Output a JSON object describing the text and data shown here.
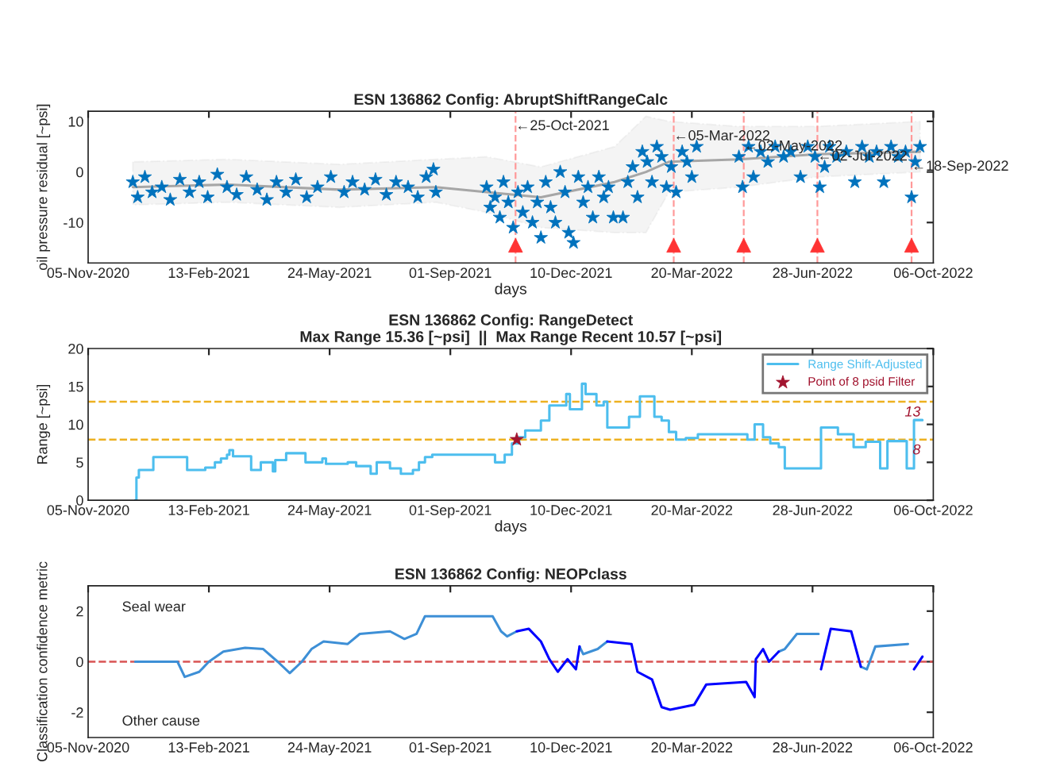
{
  "chart_data": [
    {
      "type": "scatter",
      "title": "ESN 136862 Config: AbruptShiftRangeCalc",
      "xlabel": "days",
      "ylabel": "oil pressure residual [~psi]",
      "xlim": [
        "2020-11-05",
        "2022-10-06"
      ],
      "ylim": [
        -18,
        12
      ],
      "yticks": [
        -10,
        0,
        10
      ],
      "xticks": [
        {
          "value": "2020-11-05",
          "label": "05-Nov-2020"
        },
        {
          "value": "2021-02-13",
          "label": "13-Feb-2021"
        },
        {
          "value": "2021-05-24",
          "label": "24-May-2021"
        },
        {
          "value": "2021-09-01",
          "label": "01-Sep-2021"
        },
        {
          "value": "2021-12-10",
          "label": "10-Dec-2021"
        },
        {
          "value": "2022-03-20",
          "label": "20-Mar-2022"
        },
        {
          "value": "2022-06-28",
          "label": "28-Jun-2022"
        },
        {
          "value": "2022-10-06",
          "label": "06-Oct-2022"
        }
      ],
      "grid": false,
      "legend": false,
      "series": [
        {
          "color": "#0072bd",
          "marker": "star",
          "x": [
            "2020-12-12",
            "2020-12-16",
            "2020-12-22",
            "2020-12-28",
            "2021-01-05",
            "2021-01-12",
            "2021-01-20",
            "2021-01-28",
            "2021-02-05",
            "2021-02-12",
            "2021-02-20",
            "2021-02-28",
            "2021-03-08",
            "2021-03-16",
            "2021-03-25",
            "2021-04-02",
            "2021-04-10",
            "2021-04-18",
            "2021-04-26",
            "2021-05-05",
            "2021-05-14",
            "2021-05-25",
            "2021-06-05",
            "2021-06-12",
            "2021-06-22",
            "2021-07-01",
            "2021-07-10",
            "2021-07-18",
            "2021-07-28",
            "2021-08-05",
            "2021-08-12",
            "2021-08-18",
            "2021-08-20",
            "2021-10-01",
            "2021-10-04",
            "2021-10-08",
            "2021-10-12",
            "2021-10-15",
            "2021-10-19",
            "2021-10-23",
            "2021-10-27",
            "2021-10-31",
            "2021-11-04",
            "2021-11-08",
            "2021-11-12",
            "2021-11-15",
            "2021-11-19",
            "2021-11-23",
            "2021-11-27",
            "2021-12-01",
            "2021-12-05",
            "2021-12-08",
            "2021-12-12",
            "2021-12-16",
            "2021-12-20",
            "2021-12-24",
            "2021-12-28",
            "2022-01-02",
            "2022-01-06",
            "2022-01-10",
            "2022-01-14",
            "2022-01-22",
            "2022-01-26",
            "2022-01-30",
            "2022-02-03",
            "2022-02-07",
            "2022-02-11",
            "2022-02-15",
            "2022-02-19",
            "2022-02-23",
            "2022-02-27",
            "2022-03-03",
            "2022-03-07",
            "2022-03-12",
            "2022-03-16",
            "2022-03-20",
            "2022-03-24",
            "2022-04-28",
            "2022-05-01",
            "2022-05-06",
            "2022-05-10",
            "2022-05-16",
            "2022-05-22",
            "2022-05-28",
            "2022-06-04",
            "2022-06-10",
            "2022-06-18",
            "2022-06-24",
            "2022-06-30",
            "2022-07-04",
            "2022-07-08",
            "2022-07-12",
            "2022-07-18",
            "2022-07-26",
            "2022-08-02",
            "2022-08-08",
            "2022-08-14",
            "2022-08-20",
            "2022-08-26",
            "2022-09-01",
            "2022-09-07",
            "2022-09-13",
            "2022-09-18",
            "2022-09-21",
            "2022-09-25"
          ],
          "values": [
            -2,
            -5,
            -1,
            -4,
            -3,
            -5.5,
            -1.5,
            -4,
            -2,
            -5,
            -0.5,
            -3,
            -4.5,
            -1,
            -3.5,
            -5.5,
            -2,
            -4,
            -1.5,
            -5,
            -3,
            -1,
            -4,
            -2,
            -3.5,
            -1.5,
            -4.5,
            -2,
            -3,
            -5,
            -1,
            0.5,
            -4,
            -3,
            -7,
            -5,
            -9,
            -2,
            -6,
            -11,
            -4,
            -8,
            -3,
            -10,
            -6,
            -13,
            -2,
            -7,
            -10,
            0,
            -4,
            -12,
            -14,
            -1,
            -6,
            -3,
            -9,
            -1,
            -5,
            -3,
            -9,
            -9,
            -2,
            1,
            -5,
            4,
            2,
            -2,
            5,
            3,
            -3,
            1,
            -4,
            4,
            2,
            -1,
            5,
            3,
            -3,
            5,
            -1,
            4,
            2,
            5,
            3,
            4,
            -1,
            5,
            3,
            -3,
            1,
            5,
            3,
            4,
            -2,
            5,
            3,
            4,
            -2,
            5,
            3,
            4,
            -5,
            2,
            5
          ]
        },
        {
          "type": "line",
          "color": "#a6a6a6",
          "x": [
            "2020-12-12",
            "2021-03-01",
            "2021-06-01",
            "2021-08-20",
            "2021-10-01",
            "2021-11-15",
            "2022-01-15",
            "2022-02-10",
            "2022-03-01",
            "2022-04-28",
            "2022-07-01",
            "2022-09-25"
          ],
          "values": [
            -3,
            -2.5,
            -3.5,
            -3,
            -4,
            -5,
            -2,
            0,
            2,
            2.5,
            3.5,
            4
          ],
          "upper": [
            2,
            2.5,
            1.5,
            2.5,
            3,
            1,
            5,
            11,
            10,
            9,
            9,
            10
          ],
          "lower": [
            -6.5,
            -6,
            -7,
            -6,
            -8,
            -11,
            -12,
            -12,
            -4,
            -3,
            -1,
            0
          ]
        },
        {
          "color": "#ff3333",
          "marker": "triangle",
          "x": [
            "2021-10-25",
            "2022-03-05",
            "2022-05-02",
            "2022-07-02",
            "2022-09-18"
          ],
          "values": [
            -14.5,
            -14.5,
            -14.5,
            -14.5,
            -14.5
          ]
        }
      ],
      "ref_lines": [
        {
          "axis": "x",
          "value": "2021-10-25",
          "color": "#ff9999",
          "line_style": "dashed"
        },
        {
          "axis": "x",
          "value": "2022-03-05",
          "color": "#ff9999",
          "line_style": "dashed"
        },
        {
          "axis": "x",
          "value": "2022-05-02",
          "color": "#ff9999",
          "line_style": "dashed"
        },
        {
          "axis": "x",
          "value": "2022-07-02",
          "color": "#ff9999",
          "line_style": "dashed"
        },
        {
          "axis": "x",
          "value": "2022-09-18",
          "color": "#ff9999",
          "line_style": "dashed"
        }
      ],
      "annotations": [
        {
          "text": "←25-Oct-2021",
          "x": "2021-10-25",
          "y": 9
        },
        {
          "text": "←05-Mar-2022",
          "x": "2022-03-05",
          "y": 7
        },
        {
          "text": "←02-May-2022",
          "x": "2022-05-02",
          "y": 5
        },
        {
          "text": "←02-Jul-2022",
          "x": "2022-07-02",
          "y": 3
        },
        {
          "text": "←18-Sep-2022",
          "x": "2022-09-18",
          "y": 1
        }
      ]
    },
    {
      "type": "step",
      "title": "ESN 136862 Config: RangeDetect",
      "subtitle": "Max Range 15.36 [~psi]  ||  Max Range Recent 10.57 [~psi]",
      "xlabel": "days",
      "ylabel": "Range [~psi]",
      "xlim": [
        "2020-11-05",
        "2022-10-06"
      ],
      "ylim": [
        0,
        20
      ],
      "yticks": [
        0,
        5,
        10,
        15,
        20
      ],
      "xticks": [
        {
          "value": "2020-11-05",
          "label": "05-Nov-2020"
        },
        {
          "value": "2021-02-13",
          "label": "13-Feb-2021"
        },
        {
          "value": "2021-05-24",
          "label": "24-May-2021"
        },
        {
          "value": "2021-09-01",
          "label": "01-Sep-2021"
        },
        {
          "value": "2021-12-10",
          "label": "10-Dec-2021"
        },
        {
          "value": "2022-03-20",
          "label": "20-Mar-2022"
        },
        {
          "value": "2022-06-28",
          "label": "28-Jun-2022"
        },
        {
          "value": "2022-10-06",
          "label": "06-Oct-2022"
        }
      ],
      "grid": false,
      "legend": "top right",
      "series": [
        {
          "name": "Range Shift-Adjusted",
          "color": "#4dbeee",
          "x": [
            "2020-12-14",
            "2020-12-15",
            "2020-12-17",
            "2020-12-29",
            "2021-01-26",
            "2021-02-10",
            "2021-02-18",
            "2021-02-23",
            "2021-02-28",
            "2021-03-02",
            "2021-03-05",
            "2021-03-20",
            "2021-03-28",
            "2021-04-07",
            "2021-04-09",
            "2021-04-18",
            "2021-05-04",
            "2021-05-18",
            "2021-05-21",
            "2021-06-08",
            "2021-06-15",
            "2021-06-27",
            "2021-07-02",
            "2021-07-13",
            "2021-07-22",
            "2021-08-01",
            "2021-08-06",
            "2021-08-11",
            "2021-08-17",
            "2021-10-08",
            "2021-10-16",
            "2021-10-22",
            "2021-10-28",
            "2021-11-02",
            "2021-11-15",
            "2021-11-22",
            "2021-12-06",
            "2021-12-09",
            "2021-12-19",
            "2021-12-22",
            "2021-12-31",
            "2022-01-06",
            "2022-01-09",
            "2022-01-27",
            "2022-02-05",
            "2022-02-17",
            "2022-02-23",
            "2022-03-01",
            "2022-03-07",
            "2022-03-15",
            "2022-03-25",
            "2022-05-05",
            "2022-05-11",
            "2022-05-18",
            "2022-05-24",
            "2022-05-31",
            "2022-06-05",
            "2022-07-05",
            "2022-07-19",
            "2022-08-01",
            "2022-08-11",
            "2022-08-23",
            "2022-08-29",
            "2022-09-14",
            "2022-09-20",
            "2022-09-27"
          ],
          "values": [
            0,
            3,
            4,
            5.7,
            4,
            4.3,
            5,
            5.5,
            6,
            6.6,
            5.8,
            4,
            5,
            3.8,
            5.3,
            6.2,
            5,
            5.5,
            4.8,
            5,
            4.5,
            3.5,
            5,
            4.2,
            3.5,
            4,
            5,
            5.7,
            6,
            5,
            6,
            7.5,
            8.3,
            9.2,
            10.5,
            12.5,
            14,
            12,
            15.36,
            14,
            12.5,
            13,
            9.6,
            11,
            13.7,
            11,
            10.5,
            9,
            8,
            8.2,
            8.7,
            8,
            10,
            8.3,
            7.5,
            7,
            4.2,
            9.6,
            8.7,
            7,
            7.7,
            4.2,
            7.8,
            4.2,
            10.57,
            10.57
          ]
        },
        {
          "type": "scatter",
          "name": "Point of 8 psid Filter",
          "color": "#a2142f",
          "marker": "star",
          "x": [
            "2021-10-26"
          ],
          "values": [
            8
          ]
        }
      ],
      "ref_lines": [
        {
          "axis": "y",
          "value": 13,
          "label": "13",
          "color": "#edb120",
          "line_style": "dashed"
        },
        {
          "axis": "y",
          "value": 8,
          "label": "8",
          "color": "#edb120",
          "line_style": "dashed"
        }
      ]
    },
    {
      "type": "line",
      "title": "ESN 136862 Config: NEOPclass",
      "ylabel": "Classification confidence metric",
      "xlim": [
        "2020-11-05",
        "2022-10-06"
      ],
      "ylim": [
        -3,
        3
      ],
      "yticks": [
        -2,
        0,
        2
      ],
      "xticks": [
        {
          "value": "2020-11-05",
          "label": "05-Nov-2020"
        },
        {
          "value": "2021-02-13",
          "label": "13-Feb-2021"
        },
        {
          "value": "2021-05-24",
          "label": "24-May-2021"
        },
        {
          "value": "2021-09-01",
          "label": "01-Sep-2021"
        },
        {
          "value": "2021-12-10",
          "label": "10-Dec-2021"
        },
        {
          "value": "2022-03-20",
          "label": "20-Mar-2022"
        },
        {
          "value": "2022-06-28",
          "label": "28-Jun-2022"
        },
        {
          "value": "2022-10-06",
          "label": "06-Oct-2022"
        }
      ],
      "grid": false,
      "legend": false,
      "series": [
        {
          "color": "#3d8fd6",
          "x": [
            "2020-12-14",
            "2021-01-18",
            "2021-01-24",
            "2021-02-05",
            "2021-02-13",
            "2021-02-25",
            "2021-03-15",
            "2021-03-30",
            "2021-04-11",
            "2021-04-21",
            "2021-05-01",
            "2021-05-09",
            "2021-05-19",
            "2021-06-08",
            "2021-06-18",
            "2021-07-13",
            "2021-07-25",
            "2021-08-04",
            "2021-08-11",
            "2021-10-06",
            "2021-10-13",
            "2021-10-18",
            "2021-10-26",
            null,
            "2021-12-17",
            "2021-12-20",
            "2022-01-01",
            "2022-01-09",
            null,
            "2022-05-31",
            "2022-06-05",
            "2022-06-15",
            "2022-07-03",
            null,
            "2022-08-07",
            "2022-08-12",
            "2022-08-19",
            "2022-09-15"
          ],
          "values": [
            0,
            0,
            -0.6,
            -0.4,
            0,
            0.4,
            0.55,
            0.5,
            0,
            -0.45,
            0,
            0.5,
            0.8,
            0.7,
            1.1,
            1.2,
            0.9,
            1.1,
            1.8,
            1.8,
            1.2,
            1.0,
            1.2,
            null,
            0.6,
            0.3,
            0.5,
            0.8,
            null,
            0.4,
            0.5,
            1.1,
            1.1,
            null,
            -0.2,
            -0.3,
            0.6,
            0.7
          ]
        },
        {
          "color": "#0000ff",
          "x": [
            "2021-10-26",
            "2021-11-05",
            "2021-11-15",
            "2021-11-22",
            "2021-11-29",
            "2021-12-07",
            "2021-12-14",
            "2021-12-17",
            null,
            "2022-01-09",
            "2022-01-29",
            "2022-02-03",
            "2022-02-15",
            "2022-02-23",
            "2022-03-02",
            "2022-03-22",
            "2022-04-01",
            "2022-05-04",
            "2022-05-11",
            "2022-05-12",
            "2022-05-18",
            "2022-05-23",
            "2022-05-31",
            null,
            "2022-07-05",
            "2022-07-13",
            "2022-07-30",
            "2022-08-07",
            null,
            "2022-09-20",
            "2022-09-27"
          ],
          "values": [
            1.2,
            1.3,
            0.8,
            0.1,
            -0.4,
            0.1,
            -0.3,
            0.6,
            null,
            0.8,
            0.7,
            -0.4,
            -0.7,
            -1.8,
            -1.9,
            -1.7,
            -0.9,
            -0.8,
            -1.4,
            0.1,
            0.5,
            0,
            0.4,
            null,
            -0.3,
            1.3,
            1.2,
            -0.2,
            null,
            -0.3,
            0.2
          ]
        }
      ],
      "ref_lines": [
        {
          "axis": "y",
          "value": 0,
          "color": "#d95353",
          "line_style": "dashed"
        }
      ],
      "annotations": [
        "Seal wear",
        "Other cause"
      ]
    }
  ]
}
